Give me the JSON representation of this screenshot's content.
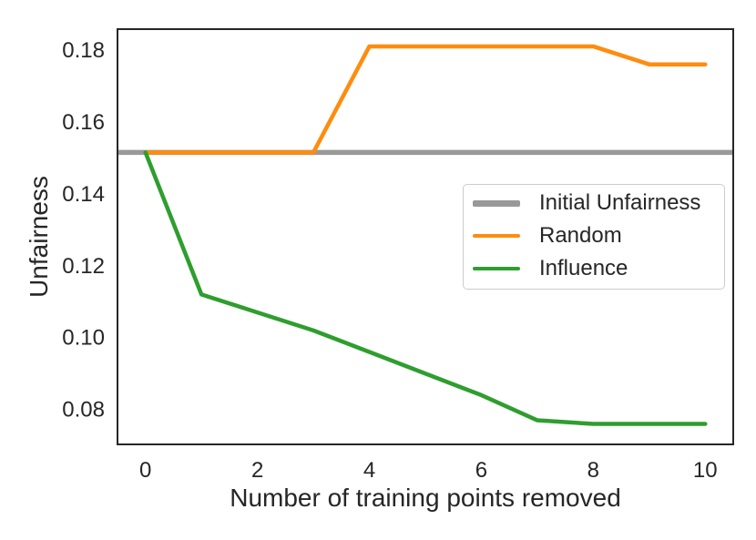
{
  "figure": {
    "background": "#ffffff",
    "text_color": "#262626",
    "spine_color": "#262626"
  },
  "chart_data": {
    "type": "line",
    "title": "",
    "xlabel": "Number of training points removed",
    "ylabel": "Unfairness",
    "x": [
      0,
      1,
      2,
      3,
      4,
      5,
      6,
      7,
      8,
      9,
      10
    ],
    "series": [
      {
        "name": "Initial Unfairness",
        "style": "hline",
        "value": 0.1515,
        "color": "#999999",
        "line_width": 5.5
      },
      {
        "name": "Random",
        "style": "line",
        "values": [
          0.1515,
          0.1515,
          0.1515,
          0.1515,
          0.181,
          0.181,
          0.181,
          0.181,
          0.181,
          0.176,
          0.176
        ],
        "color": "#ff8c0e",
        "line_width": 4.5
      },
      {
        "name": "Influence",
        "style": "line",
        "values": [
          0.1515,
          0.112,
          0.107,
          0.102,
          0.096,
          0.09,
          0.084,
          0.077,
          0.076,
          0.076,
          0.076
        ],
        "color": "#2e9e2e",
        "line_width": 4.5
      }
    ],
    "xlim": [
      -0.5,
      10.5
    ],
    "ylim": [
      0.0703,
      0.1858
    ],
    "xticks": [
      0,
      2,
      4,
      6,
      8,
      10
    ],
    "xtick_labels": [
      "0",
      "2",
      "4",
      "6",
      "8",
      "10"
    ],
    "yticks": [
      0.08,
      0.1,
      0.12,
      0.14,
      0.16,
      0.18
    ],
    "ytick_labels": [
      "0.08",
      "0.10",
      "0.12",
      "0.14",
      "0.16",
      "0.18"
    ],
    "grid": false,
    "legend": {
      "position": "center right, inside plot",
      "items": [
        {
          "label": "Initial Unfairness",
          "color": "#999999",
          "swatch_thickness": 7
        },
        {
          "label": "Random",
          "color": "#ff8c0e",
          "swatch_thickness": 4.5
        },
        {
          "label": "Influence",
          "color": "#2e9e2e",
          "swatch_thickness": 4.5
        }
      ]
    }
  }
}
